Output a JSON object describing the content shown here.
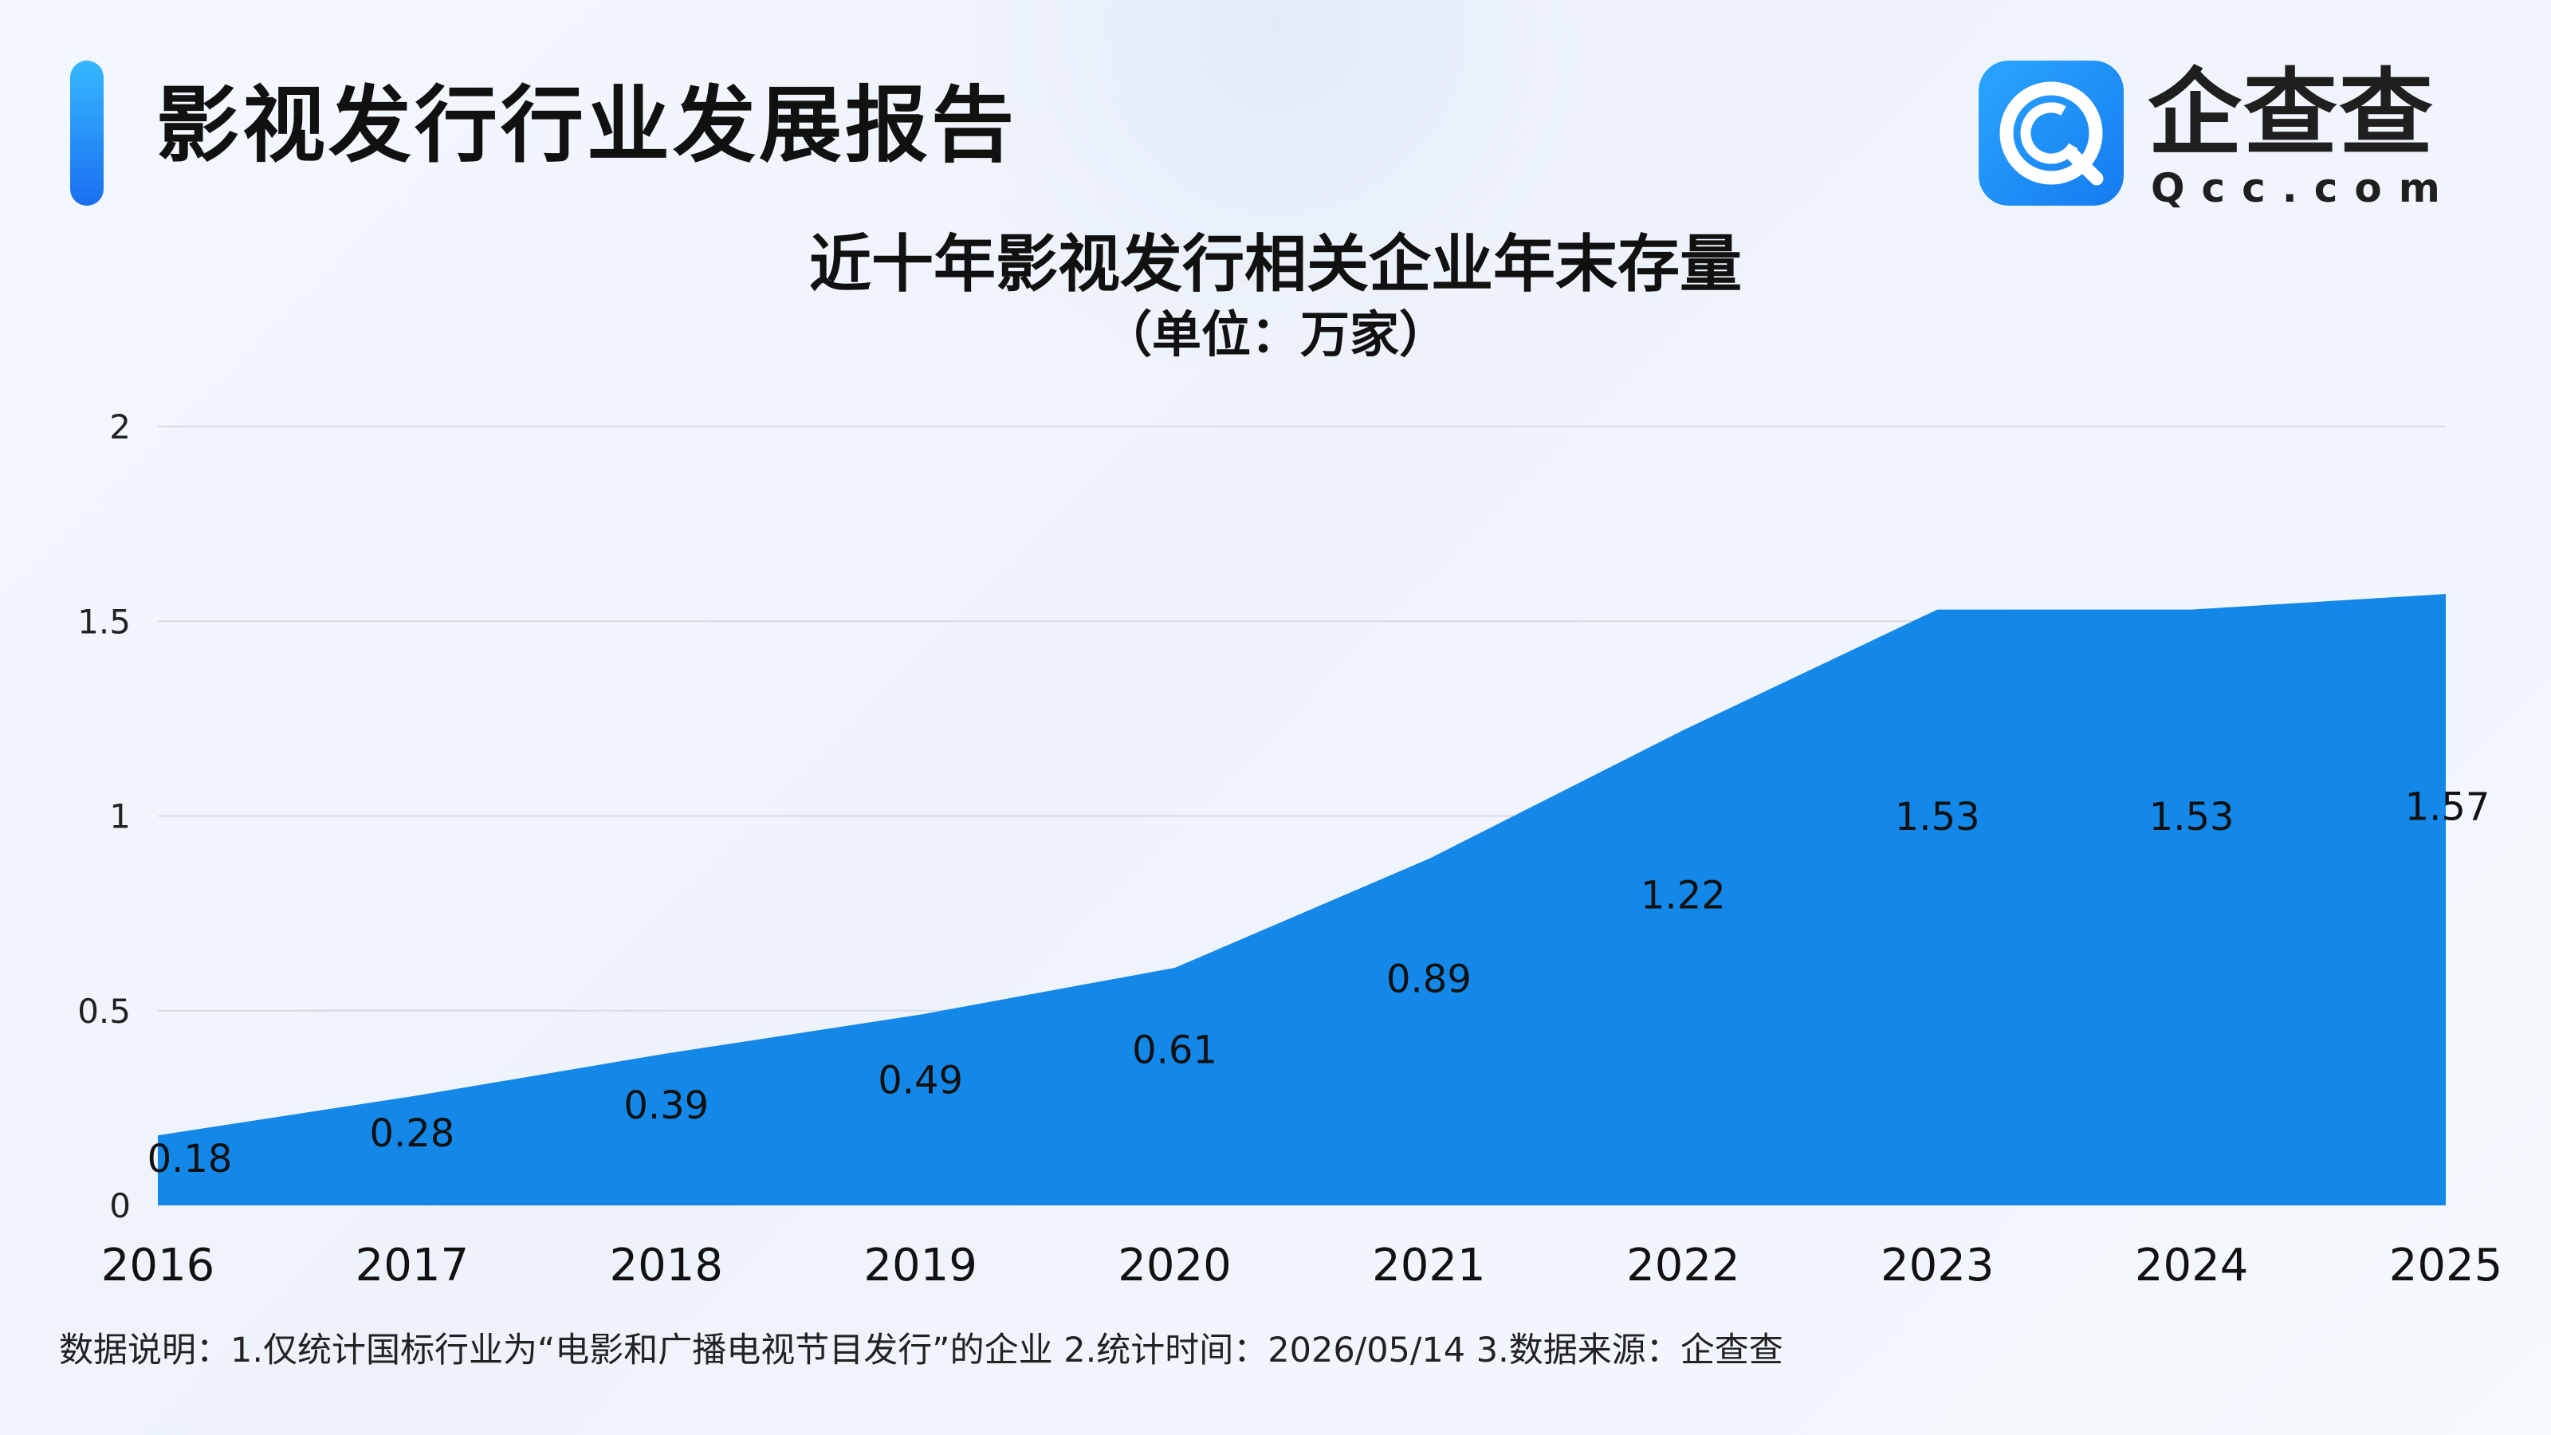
{
  "header": {
    "title": "影视发行行业发展报告"
  },
  "logo": {
    "name": "企查查",
    "domain": "Qcc.com",
    "icon": "qcc-logo-icon"
  },
  "chart_data": {
    "type": "area",
    "title": "近十年影视发行相关企业年末存量",
    "subtitle": "（单位：万家）",
    "xlabel": "",
    "ylabel": "",
    "categories": [
      "2016",
      "2017",
      "2018",
      "2019",
      "2020",
      "2021",
      "2022",
      "2023",
      "2024",
      "2025"
    ],
    "values": [
      0.18,
      0.28,
      0.39,
      0.49,
      0.61,
      0.89,
      1.22,
      1.53,
      1.53,
      1.57
    ],
    "data_labels": [
      "0.18",
      "0.28",
      "0.39",
      "0.49",
      "0.61",
      "0.89",
      "1.22",
      "1.53",
      "1.53",
      "1.57"
    ],
    "ylim": [
      0,
      2
    ],
    "yticks": [
      0,
      0.5,
      1,
      1.5,
      2
    ],
    "ytick_labels": [
      "0",
      "0.5",
      "1",
      "1.5",
      "2"
    ],
    "grid": true,
    "legend": "none",
    "fill_color": "#1488e8",
    "grid_color": "#d7dde6"
  },
  "footnote": "数据说明：1.仅统计国标行业为“电影和广播电视节目发行”的企业   2.统计时间：2026/05/14    3.数据来源：企查查"
}
